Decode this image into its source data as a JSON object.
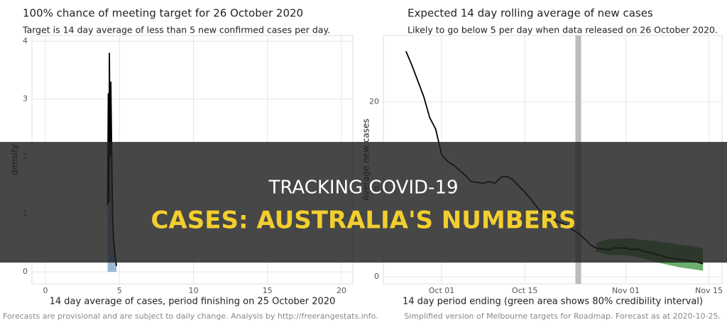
{
  "chart_data": [
    {
      "type": "density",
      "title": "100% chance of meeting target for 26 October 2020",
      "subtitle": "Target is 14 day average of less than 5 new confirmed cases per day.",
      "xlabel": "14 day average of cases, period finishing on 25 October 2020",
      "ylabel": "density",
      "caption": "Forecasts are provisional and are subject to daily change. Analysis by http://freerangestats.info.",
      "x": [
        4.2,
        4.25,
        4.3,
        4.32,
        4.38,
        4.42,
        4.5,
        4.55,
        4.6,
        4.7,
        4.8
      ],
      "values": [
        1.15,
        3.1,
        1.2,
        3.8,
        2.0,
        3.3,
        1.6,
        0.9,
        0.6,
        0.3,
        0.1
      ],
      "color": "#000000",
      "fill": "#7ea6c9",
      "xlim": [
        -0.91,
        20.77
      ],
      "xticks": [
        0,
        5,
        10,
        15,
        20
      ],
      "ylim": [
        -0.21,
        4.1
      ],
      "yticks": [
        0,
        1,
        2,
        3,
        4
      ],
      "grid": true
    },
    {
      "type": "line",
      "title": "Expected 14 day rolling average of new cases",
      "subtitle": "Likely to go below 5 per day when data released on 26 October 2020.",
      "xlabel": "14 day period ending (green area shows 80% credibility interval)",
      "ylabel": "Average new cases",
      "caption": "Simplified version of Melbourne targets for Roadmap. Forecast as at 2020-10-25.",
      "x": [
        -6,
        -5,
        -4,
        -3,
        -2,
        -1,
        0,
        1,
        2,
        3,
        4,
        5,
        6,
        7,
        8,
        9,
        10,
        11,
        12,
        13,
        14,
        15,
        16,
        17,
        18,
        19,
        20,
        21,
        22,
        23,
        24,
        25,
        26,
        27,
        28,
        29,
        30,
        31,
        32,
        33,
        34,
        35,
        36,
        37,
        38,
        39,
        40,
        41,
        42,
        43,
        44
      ],
      "values": [
        25.8,
        24.2,
        22.4,
        20.6,
        18.2,
        16.9,
        14.0,
        13.2,
        12.8,
        12.2,
        11.6,
        10.9,
        10.8,
        10.7,
        10.9,
        10.7,
        11.4,
        11.5,
        11.1,
        10.4,
        9.7,
        8.9,
        8.0,
        7.3,
        7.0,
        6.5,
        6.2,
        5.9,
        5.4,
        5.0,
        4.4,
        3.7,
        3.3,
        3.2,
        3.1,
        3.3,
        3.3,
        3.3,
        3.1,
        3.2,
        2.9,
        2.8,
        2.6,
        2.4,
        2.2,
        2.1,
        2.0,
        1.9,
        1.8,
        1.7,
        1.5
      ],
      "color": "#000000",
      "band": {
        "x": [
          26,
          28,
          30,
          32,
          34,
          36,
          38,
          40,
          42,
          44
        ],
        "lower": [
          2.9,
          2.5,
          2.5,
          2.4,
          2.1,
          1.7,
          1.4,
          1.1,
          0.9,
          0.7
        ],
        "upper": [
          3.9,
          4.3,
          4.4,
          4.4,
          4.2,
          4.1,
          3.9,
          3.7,
          3.5,
          3.3
        ],
        "color": "#2e8b2e"
      },
      "vline": 23,
      "xlim": [
        -9.8,
        47.2
      ],
      "xticks": [
        {
          "value": 0,
          "label": "Oct 01"
        },
        {
          "value": 14,
          "label": "Oct 15"
        },
        {
          "value": 31,
          "label": "Nov 01"
        },
        {
          "value": 45,
          "label": "Nov 15"
        }
      ],
      "ylim": [
        -0.8,
        27.6
      ],
      "yticks": [
        0,
        10,
        20
      ],
      "grid": true
    }
  ],
  "overlay": {
    "line1": "TRACKING COVID-19",
    "line2": "CASES: AUSTRALIA'S NUMBERS"
  }
}
